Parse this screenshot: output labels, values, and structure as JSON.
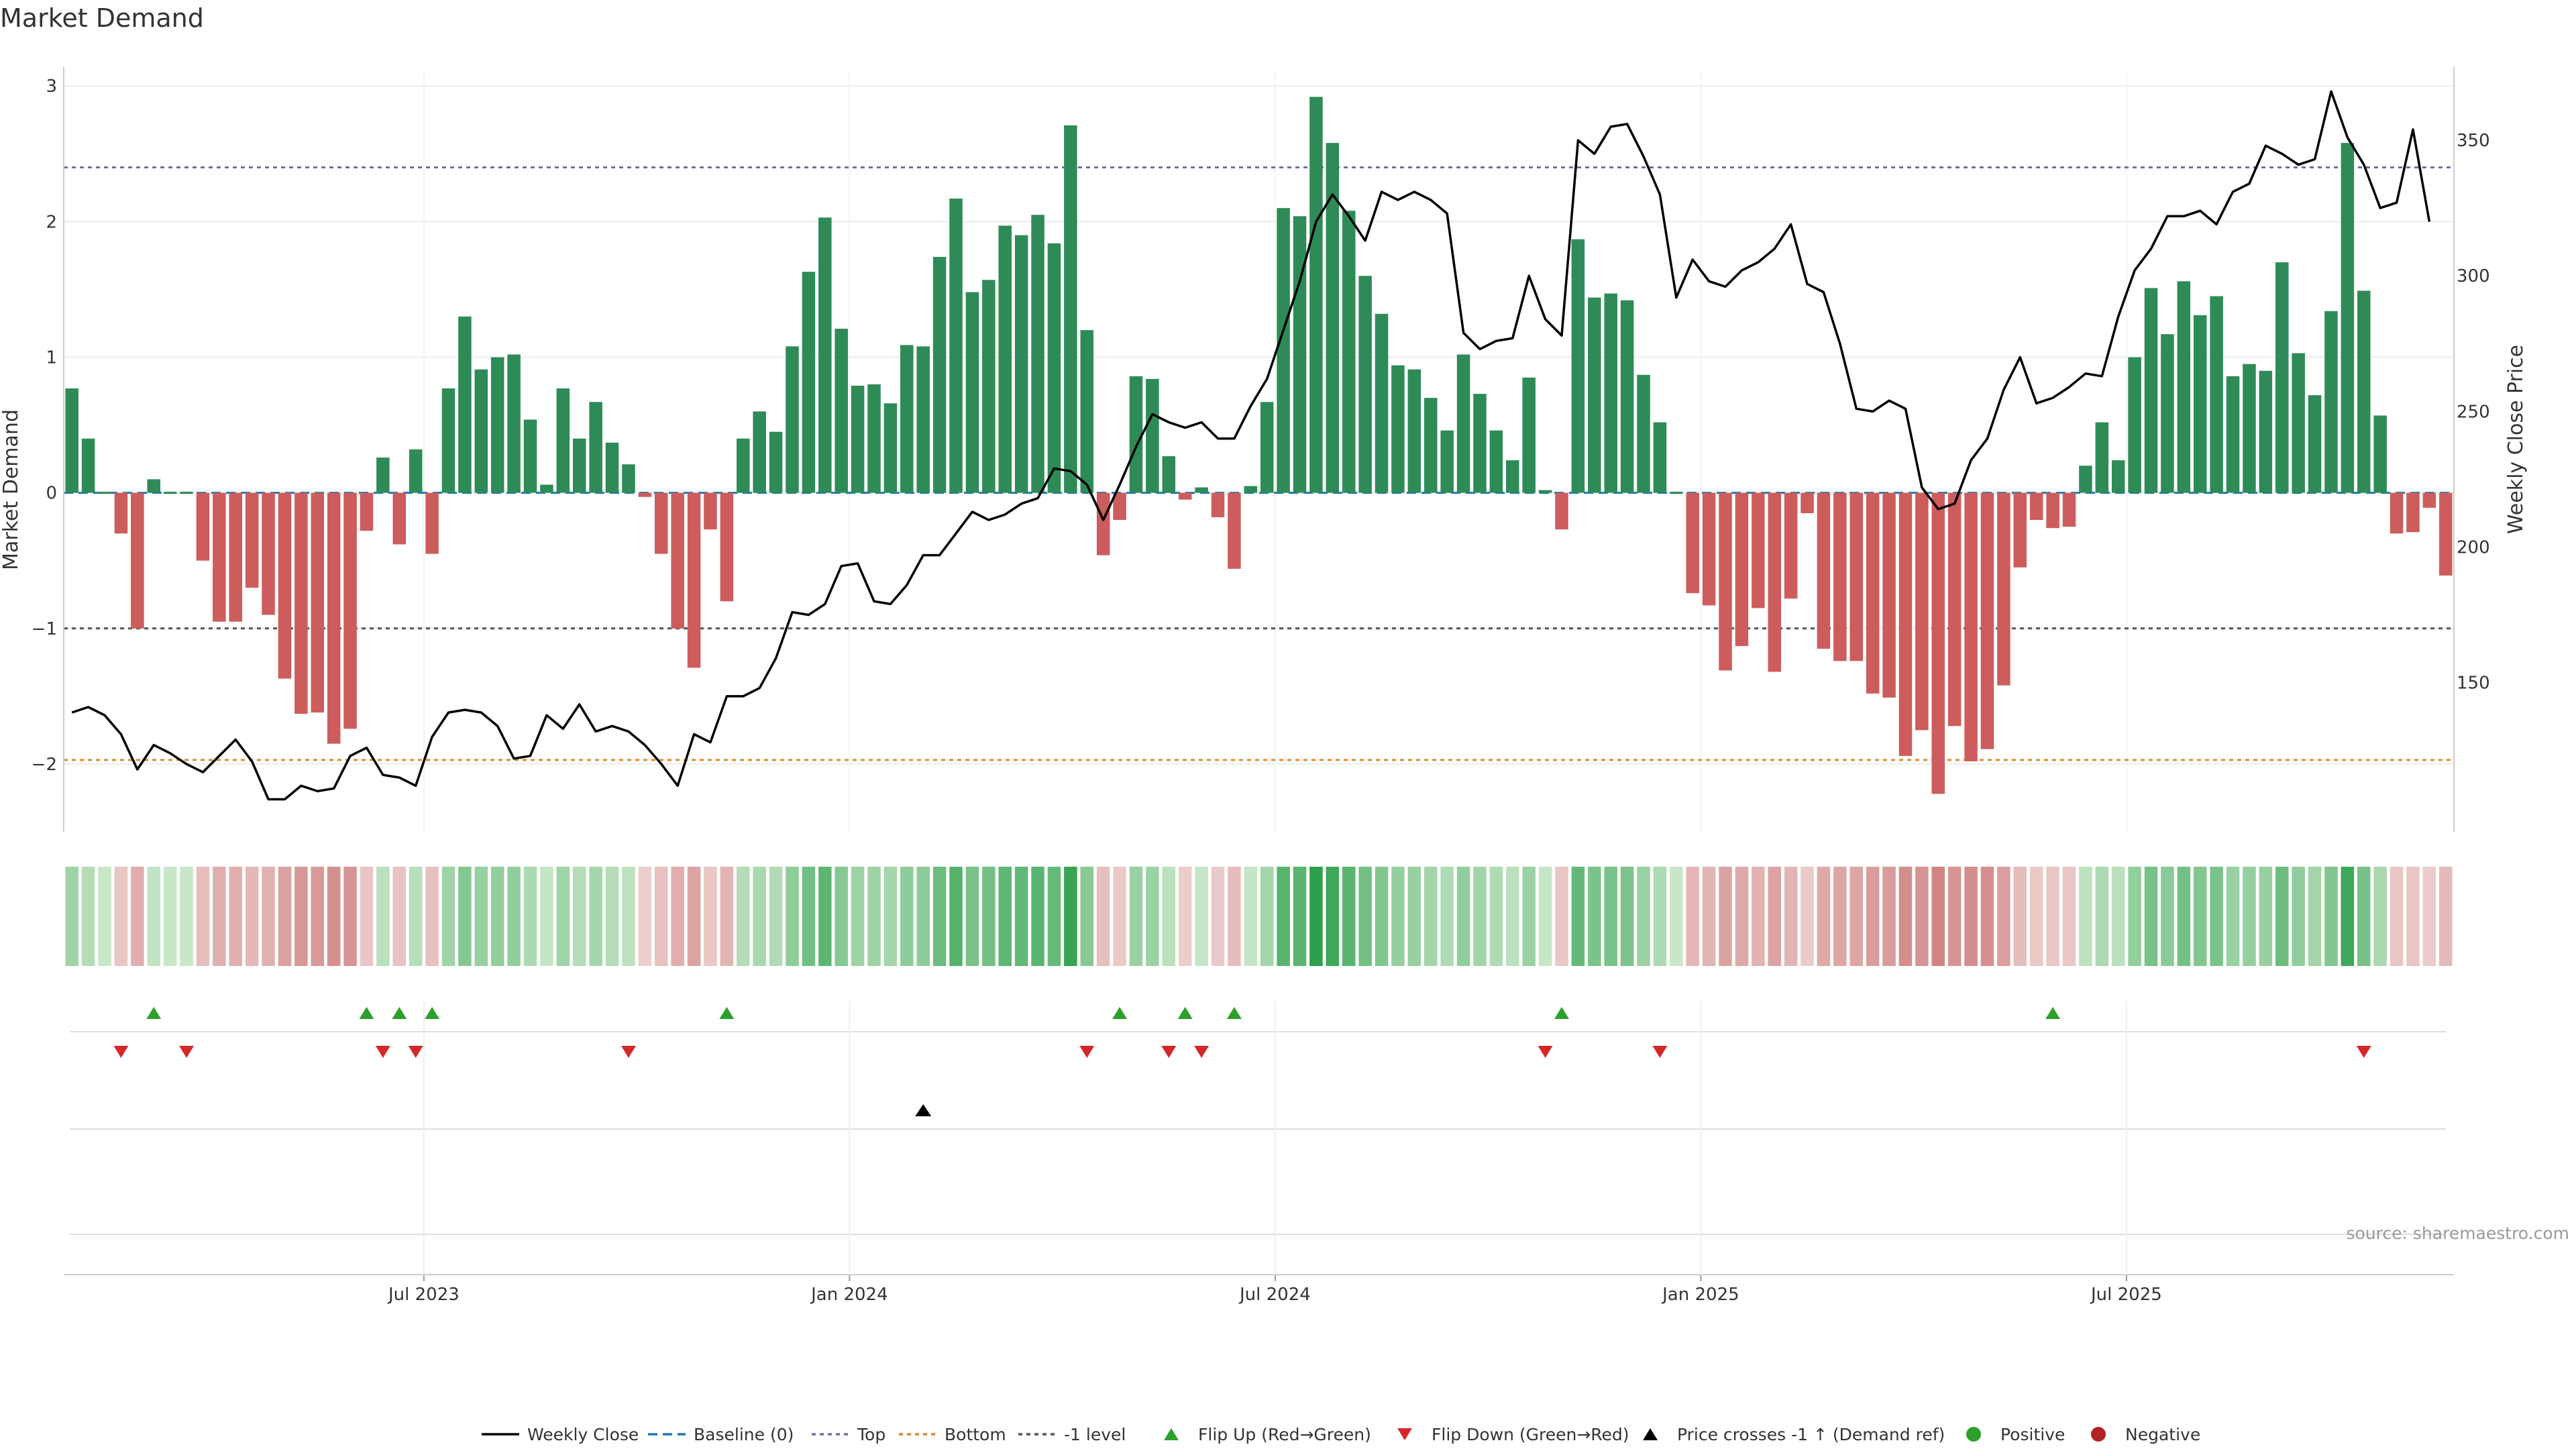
{
  "chart_data": {
    "type": "bar",
    "title": "Market Demand",
    "ylabel_left": "Market Demand",
    "ylabel_right": "Weekly Close Price",
    "ylim_left": [
      -2.5,
      3.1
    ],
    "ylim_right": [
      95,
      375
    ],
    "left_ticks": [
      "3",
      "2",
      "1",
      "0",
      "−1",
      "−2"
    ],
    "right_ticks": [
      "350",
      "300",
      "250",
      "200",
      "150"
    ],
    "reference_lines": {
      "top": 2.4,
      "bottom": -1.97,
      "minus1": -1.0
    },
    "x_ticks": [
      {
        "label": "Jul 2023",
        "week": 21.5
      },
      {
        "label": "Jan 2024",
        "week": 47.5
      },
      {
        "label": "Jul 2024",
        "week": 73.5
      },
      {
        "label": "Jan 2025",
        "week": 99.5
      },
      {
        "label": "Jul 2025",
        "week": 125.5
      }
    ],
    "demand": [
      0.77,
      0.4,
      0,
      -0.3,
      -1.0,
      0.1,
      0,
      0,
      -0.5,
      -0.95,
      -0.95,
      -0.7,
      -0.9,
      -1.37,
      -1.63,
      -1.62,
      -1.85,
      -1.74,
      -0.28,
      0.26,
      -0.38,
      0.32,
      -0.45,
      0.77,
      1.3,
      0.91,
      1.0,
      1.02,
      0.54,
      0.06,
      0.77,
      0.4,
      0.67,
      0.37,
      0.21,
      -0.03,
      -0.45,
      -1.0,
      -1.29,
      -0.27,
      -0.8,
      0.4,
      0.6,
      0.45,
      1.08,
      1.63,
      2.03,
      1.21,
      0.79,
      0.8,
      0.66,
      1.09,
      1.08,
      1.74,
      2.17,
      1.48,
      1.57,
      1.97,
      1.9,
      2.05,
      1.84,
      2.71,
      1.2,
      -0.46,
      -0.2,
      0.86,
      0.84,
      0.27,
      -0.05,
      0.04,
      -0.18,
      -0.56,
      0.05,
      0.67,
      2.1,
      2.04,
      2.92,
      2.58,
      2.08,
      1.6,
      1.32,
      0.94,
      0.91,
      0.7,
      0.46,
      1.02,
      0.73,
      0.46,
      0.24,
      0.85,
      0.02,
      -0.27,
      1.87,
      1.44,
      1.47,
      1.42,
      0.87,
      0.52,
      0,
      -0.74,
      -0.83,
      -1.31,
      -1.13,
      -0.85,
      -1.32,
      -0.78,
      -0.15,
      -1.15,
      -1.24,
      -1.24,
      -1.48,
      -1.51,
      -1.94,
      -1.75,
      -2.22,
      -1.72,
      -1.98,
      -1.89,
      -1.42,
      -0.55,
      -0.2,
      -0.26,
      -0.25,
      0.2,
      0.52,
      0.24,
      1.0,
      1.51,
      1.17,
      1.56,
      1.31,
      1.45,
      0.86,
      0.95,
      0.9,
      1.7,
      1.03,
      0.72,
      1.34,
      2.58,
      1.49,
      0.57,
      -0.3,
      -0.29,
      -0.11,
      -0.61
    ],
    "weekly_close": [
      139,
      141,
      138,
      131,
      118,
      127,
      124,
      120,
      117,
      123,
      129,
      121,
      107,
      107,
      112,
      110,
      111,
      123,
      126,
      116,
      115,
      112,
      130,
      139,
      140,
      139,
      134,
      122,
      123,
      138,
      133,
      142,
      132,
      134,
      132,
      127,
      120,
      112,
      131,
      128,
      145,
      145,
      148,
      159,
      176,
      175,
      179,
      193,
      194,
      180,
      179,
      186,
      197,
      197,
      205,
      213,
      210,
      212,
      216,
      218,
      229,
      228,
      223,
      210,
      223,
      237,
      249,
      246,
      244,
      246,
      240,
      240,
      252,
      262,
      280,
      298,
      320,
      330,
      322,
      313,
      331,
      328,
      331,
      328,
      323,
      279,
      273,
      276,
      277,
      300,
      284,
      278,
      350,
      345,
      355,
      356,
      344,
      330,
      292,
      306,
      298,
      296,
      302,
      305,
      310,
      319,
      297,
      294,
      275,
      251,
      250,
      254,
      251,
      222,
      214,
      216,
      232,
      240,
      258,
      270,
      253,
      255,
      259,
      264,
      263,
      285,
      302,
      310,
      322,
      322,
      324,
      319,
      331,
      334,
      348,
      345,
      341,
      343,
      368,
      351,
      341,
      325,
      327,
      354,
      320
    ],
    "flip_up_weeks": [
      5,
      18,
      20,
      22,
      40,
      64,
      68,
      71,
      91,
      121
    ],
    "flip_down_weeks": [
      3,
      7,
      19,
      21,
      34,
      62,
      67,
      69,
      90,
      97,
      140
    ],
    "price_cross_weeks": [
      52
    ],
    "legend": [
      {
        "key": "weekly-close",
        "label": "Weekly Close",
        "color": "#000000"
      },
      {
        "key": "baseline",
        "label": "Baseline (0)",
        "color": "#1f77b4"
      },
      {
        "key": "top",
        "label": "Top",
        "color": "#6e6e9e"
      },
      {
        "key": "bottom",
        "label": "Bottom",
        "color": "#e08a2c"
      },
      {
        "key": "minus1",
        "label": "-1 level",
        "color": "#555555"
      },
      {
        "key": "flip-up",
        "label": "Flip Up (Red→Green)",
        "color": "#2ca02c"
      },
      {
        "key": "flip-down",
        "label": "Flip Down (Green→Red)",
        "color": "#d62728"
      },
      {
        "key": "price-cross",
        "label": "Price crosses -1 ↑ (Demand ref)",
        "color": "#000000"
      },
      {
        "key": "positive",
        "label": "Positive",
        "color": "#2ca02c"
      },
      {
        "key": "negative",
        "label": "Negative",
        "color": "#b22222"
      }
    ],
    "source": "source: sharemaestro.com"
  },
  "colors": {
    "positive_bar": "#2e8b57",
    "negative_bar": "#cd5c5c"
  }
}
